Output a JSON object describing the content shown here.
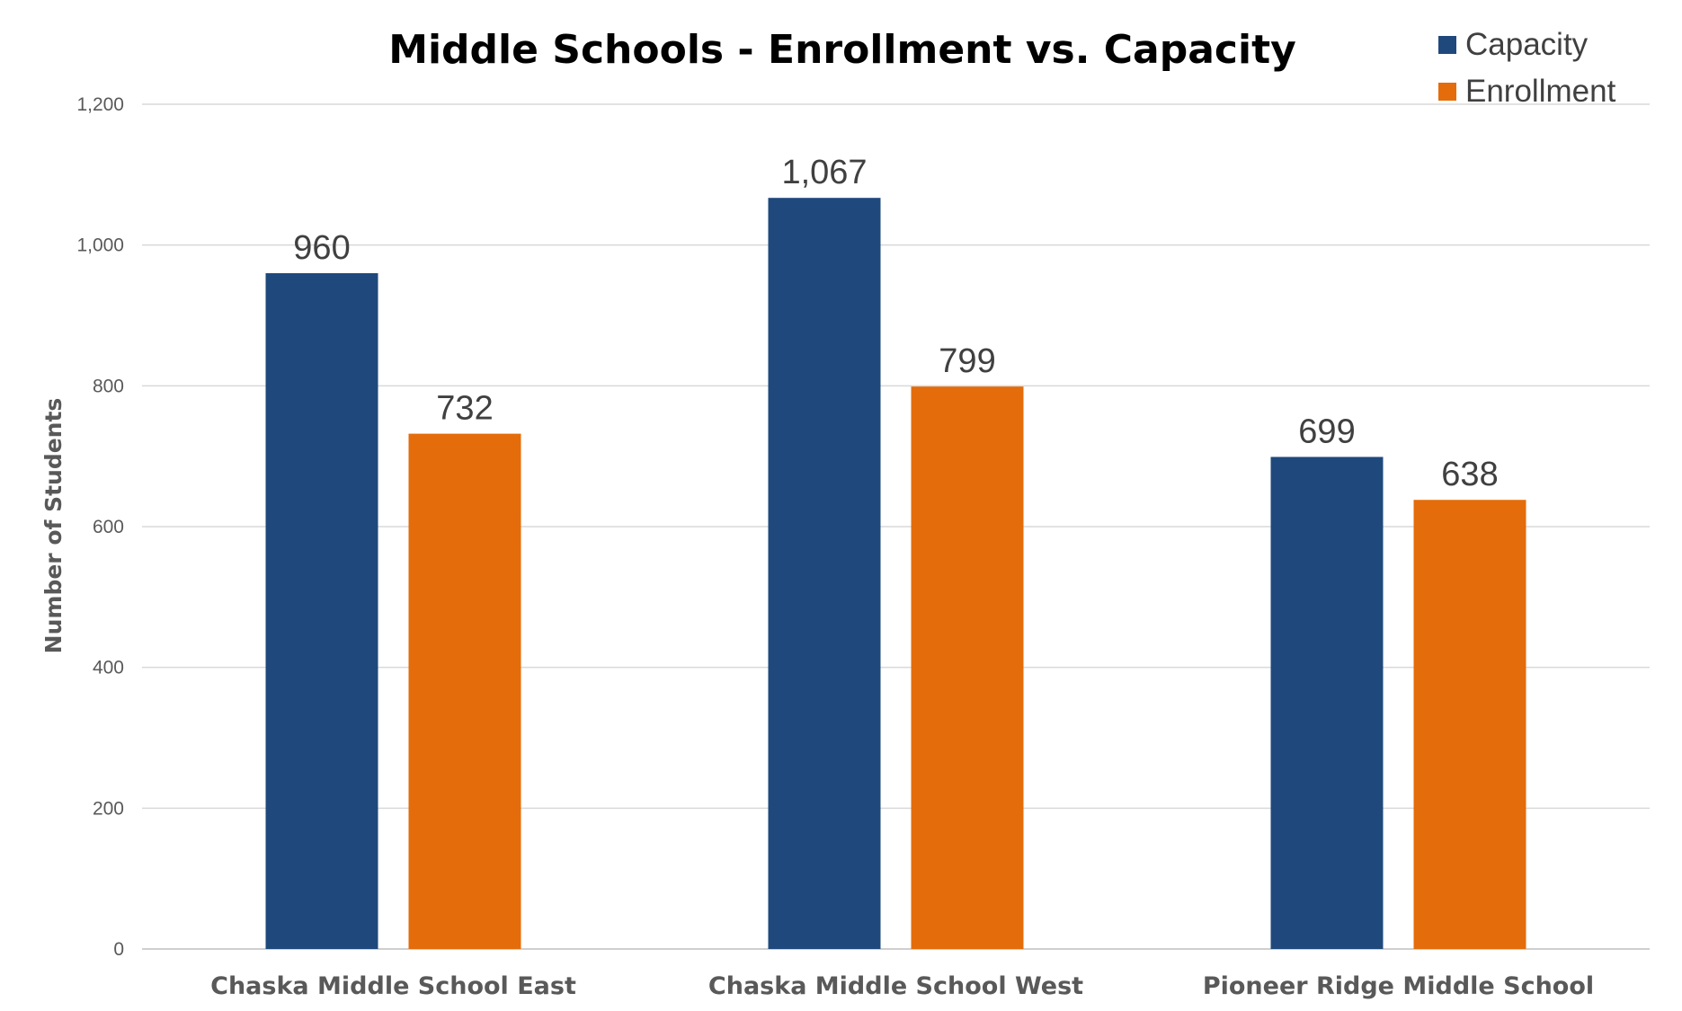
{
  "chart_data": {
    "type": "bar",
    "title": "Middle Schools - Enrollment vs. Capacity",
    "xlabel": "",
    "ylabel": "Number of Students",
    "categories": [
      "Chaska Middle School East",
      "Chaska Middle School West",
      "Pioneer Ridge Middle School"
    ],
    "series": [
      {
        "name": "Capacity",
        "color": "#1f497d",
        "values": [
          960,
          1067,
          699
        ],
        "labels": [
          "960",
          "1,067",
          "699"
        ]
      },
      {
        "name": "Enrollment",
        "color": "#e46c0a",
        "values": [
          732,
          799,
          638
        ],
        "labels": [
          "732",
          "799",
          "638"
        ]
      }
    ],
    "ylim": [
      0,
      1200
    ],
    "yticks": [
      0,
      200,
      400,
      600,
      800,
      1000,
      1200
    ],
    "ytick_labels": [
      "0",
      "200",
      "400",
      "600",
      "800",
      "1,000",
      "1,200"
    ],
    "grid": true,
    "legend_position": "top-right"
  }
}
